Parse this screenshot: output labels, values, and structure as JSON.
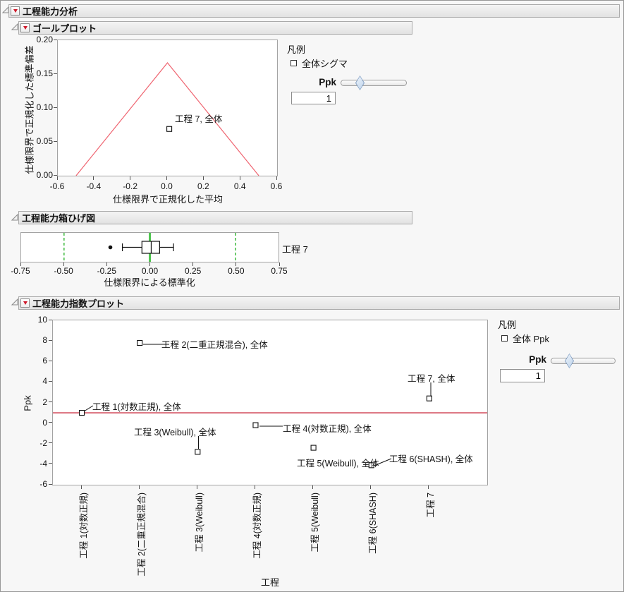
{
  "window_title": "工程能力分析",
  "sections": {
    "analysis": {
      "title": "工程能力分析"
    },
    "goal": {
      "title": "ゴールプロット"
    },
    "box": {
      "title": "工程能力箱ひげ図"
    },
    "index": {
      "title": "工程能力指数プロット"
    }
  },
  "colors": {
    "goal_triangle_line": "#ef6470",
    "index_ref_line": "#cc3044",
    "green_dashed": "#2fb52f",
    "green_solid": "#4fc44f",
    "marker_stroke": "#111111"
  },
  "chart_data": [
    {
      "id": "goal_plot",
      "type": "scatter",
      "title": "ゴールプロット",
      "xlabel": "仕様限界で正規化した平均",
      "ylabel": "仕様限界で正規化した標準偏差",
      "xlim": [
        -0.6,
        0.6
      ],
      "ylim": [
        0,
        0.2
      ],
      "x_ticks": [
        "-0.6",
        "-0.4",
        "-0.2",
        "0.0",
        "0.2",
        "0.4",
        "0.6"
      ],
      "y_ticks": [
        "0.20",
        "0.15",
        "0.10",
        "0.05",
        "0.00"
      ],
      "goal_triangle": {
        "apex": [
          0,
          0.1667
        ],
        "base_left": [
          -0.5,
          0
        ],
        "base_right": [
          0.5,
          0
        ]
      },
      "points": [
        {
          "x": 0.01,
          "y": 0.069,
          "label": "工程 7, 全体"
        }
      ],
      "legend": {
        "title": "凡例",
        "items": [
          "全体シグマ"
        ]
      },
      "ppk_control": {
        "label": "Ppk",
        "value": "1",
        "slider_fraction": 0.28
      }
    },
    {
      "id": "box_plot",
      "type": "boxplot",
      "title": "工程能力箱ひげ図",
      "xlabel": "仕様限界による標準化",
      "xlim": [
        -0.75,
        0.75
      ],
      "x_ticks": [
        "-0.75",
        "-0.50",
        "-0.25",
        "0.00",
        "0.25",
        "0.50",
        "0.75"
      ],
      "row_label": "工程 7",
      "center_line": 0,
      "spec_lines": [
        -0.5,
        0.5
      ],
      "stats": {
        "outlier": -0.23,
        "whisker_low": -0.16,
        "q1": -0.046,
        "median": 0.008,
        "q3": 0.057,
        "whisker_high": 0.138
      }
    },
    {
      "id": "index_plot",
      "type": "scatter",
      "title": "工程能力指数プロット",
      "xlabel": "工程",
      "ylabel": "Ppk",
      "ylim": [
        -6,
        10
      ],
      "y_ticks": [
        "10",
        "8",
        "6",
        "4",
        "2",
        "0",
        "-2",
        "-4",
        "-6"
      ],
      "ref_line": 1,
      "categories": [
        "工程 1(対数正規)",
        "工程 2(二重正規混合)",
        "工程 3(Weibull)",
        "工程 4(対数正規)",
        "工程 5(Weibull)",
        "工程 6(SHASH)",
        "工程 7"
      ],
      "points": [
        {
          "category": "工程 1(対数正規)",
          "ppk": 1.0,
          "label": "工程 1(対数正規), 全体"
        },
        {
          "category": "工程 2(二重正規混合)",
          "ppk": 7.8,
          "label": "工程 2(二重正規混合), 全体"
        },
        {
          "category": "工程 3(Weibull)",
          "ppk": -2.8,
          "label": "工程 3(Weibull), 全体"
        },
        {
          "category": "工程 4(対数正規)",
          "ppk": -0.2,
          "label": "工程 4(対数正規), 全体"
        },
        {
          "category": "工程 5(Weibull)",
          "ppk": -2.4,
          "label": "工程 5(Weibull), 全体"
        },
        {
          "category": "工程 6(SHASH)",
          "ppk": -4.1,
          "label": "工程 6(SHASH), 全体"
        },
        {
          "category": "工程 7",
          "ppk": 2.4,
          "label": "工程 7, 全体"
        }
      ],
      "legend": {
        "title": "凡例",
        "items": [
          "全体 Ppk"
        ]
      },
      "ppk_control": {
        "label": "Ppk",
        "value": "1",
        "slider_fraction": 0.28
      }
    }
  ]
}
